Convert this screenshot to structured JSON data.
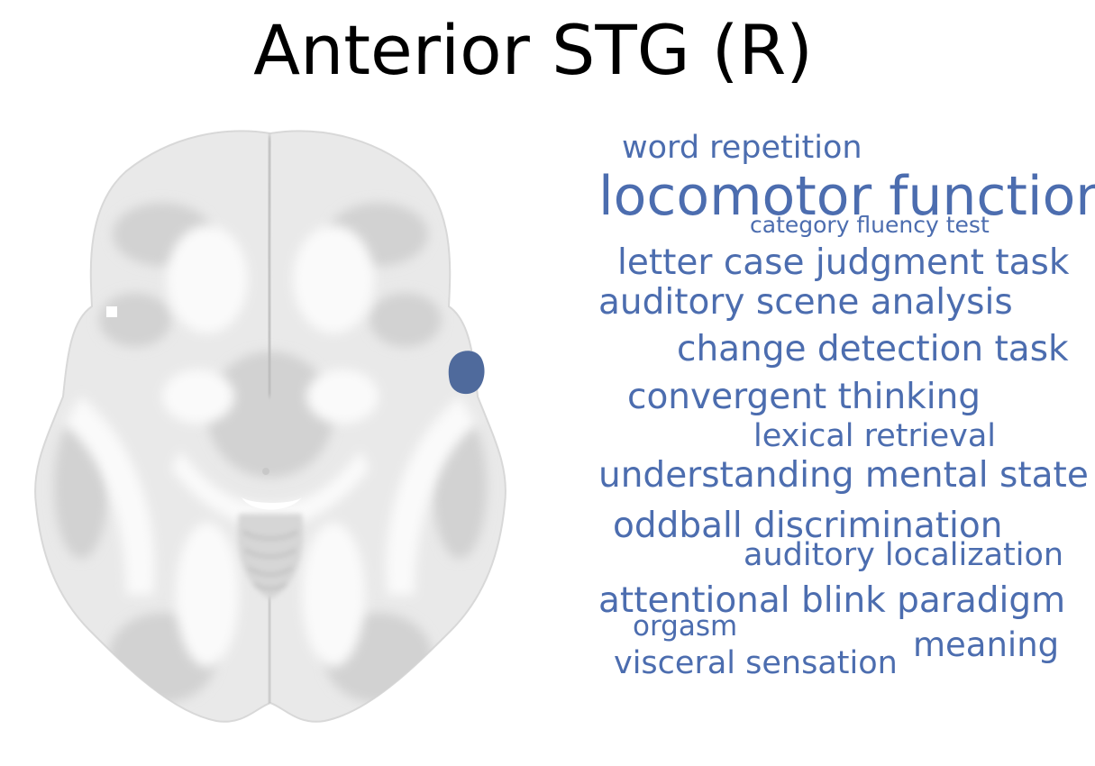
{
  "title": "Anterior STG (R)",
  "colors": {
    "term": "#4c6daf",
    "roi": "#4f6a9c",
    "brain_light": "#f3f3f3",
    "brain_mid": "#dedede",
    "brain_dark": "#c4c4c4"
  },
  "brain": {
    "view": "axial slice",
    "roi_hemisphere": "right"
  },
  "terms": [
    {
      "text": "word repetition"
    },
    {
      "text": "locomotor function"
    },
    {
      "text": "category fluency test"
    },
    {
      "text": "letter case judgment task"
    },
    {
      "text": "auditory scene analysis"
    },
    {
      "text": "change detection task"
    },
    {
      "text": "convergent thinking"
    },
    {
      "text": "lexical retrieval"
    },
    {
      "text": "understanding mental state"
    },
    {
      "text": "oddball discrimination"
    },
    {
      "text": "auditory localization"
    },
    {
      "text": "attentional blink paradigm"
    },
    {
      "text": "orgasm"
    },
    {
      "text": "meaning"
    },
    {
      "text": "visceral sensation"
    }
  ]
}
